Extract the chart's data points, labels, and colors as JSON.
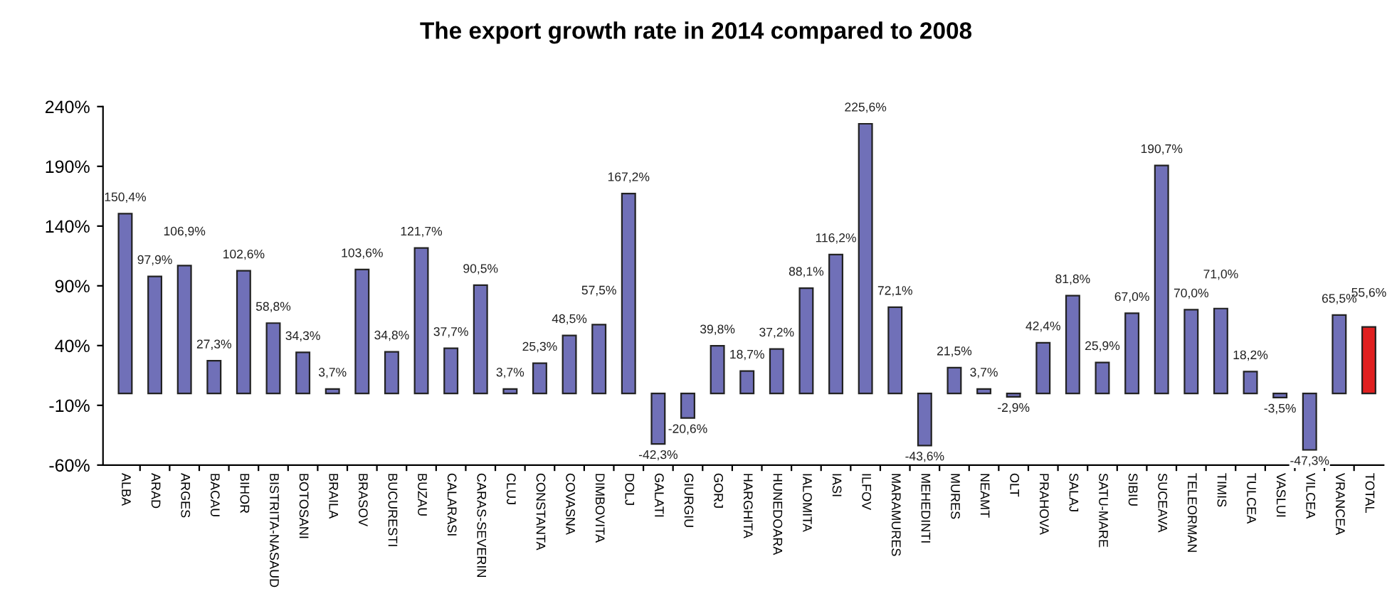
{
  "chart_data": {
    "type": "bar",
    "title": "The export growth rate in 2014 compared to 2008",
    "categories": [
      "ALBA",
      "ARAD",
      "ARGES",
      "BACAU",
      "BIHOR",
      "BISTRITA-NASAUD",
      "BOTOSANI",
      "BRAILA",
      "BRASOV",
      "BUCURESTI",
      "BUZAU",
      "CALARASI",
      "CARAS-SEVERIN",
      "CLUJ",
      "CONSTANTA",
      "COVASNA",
      "DIMBOVITA",
      "DOLJ",
      "GALATI",
      "GIURGIU",
      "GORJ",
      "HARGHITA",
      "HUNEDOARA",
      "IALOMITA",
      "IASI",
      "ILFOV",
      "MARAMURES",
      "MEHEDINTI",
      "MURES",
      "NEAMT",
      "OLT",
      "PRAHOVA",
      "SALAJ",
      "SATU-MARE",
      "SIBIU",
      "SUCEAVA",
      "TELEORMAN",
      "TIMIS",
      "TULCEA",
      "VASLUI",
      "VILCEA",
      "VRANCEA",
      "TOTAL"
    ],
    "values": [
      150.4,
      97.9,
      106.9,
      27.3,
      102.6,
      58.8,
      34.3,
      3.7,
      103.6,
      34.8,
      121.7,
      37.7,
      90.5,
      3.7,
      25.3,
      48.5,
      57.5,
      167.2,
      -42.3,
      -20.6,
      39.8,
      18.7,
      37.2,
      88.1,
      116.2,
      225.6,
      72.1,
      -43.6,
      21.5,
      3.7,
      -2.9,
      42.4,
      81.8,
      25.9,
      67.0,
      190.7,
      70.0,
      71.0,
      18.2,
      -3.5,
      -47.3,
      65.5,
      55.6
    ],
    "value_labels": [
      "150,4%",
      "97,9%",
      "106,9%",
      "27,3%",
      "102,6%",
      "58,8%",
      "34,3%",
      "3,7%",
      "103,6%",
      "34,8%",
      "121,7%",
      "37,7%",
      "90,5%",
      "3,7%",
      "25,3%",
      "48,5%",
      "57,5%",
      "167,2%",
      "-42,3%",
      "-20,6%",
      "39,8%",
      "18,7%",
      "37,2%",
      "88,1%",
      "116,2%",
      "225,6%",
      "72,1%",
      "-43,6%",
      "21,5%",
      "3,7%",
      "-2,9%",
      "42,4%",
      "81,8%",
      "25,9%",
      "67,0%",
      "190,7%",
      "70,0%",
      "71,0%",
      "18,2%",
      "-3,5%",
      "-47,3%",
      "65,5%",
      "55,6%"
    ],
    "colors": [
      "#7070b8",
      "#7070b8",
      "#7070b8",
      "#7070b8",
      "#7070b8",
      "#7070b8",
      "#7070b8",
      "#7070b8",
      "#7070b8",
      "#7070b8",
      "#7070b8",
      "#7070b8",
      "#7070b8",
      "#7070b8",
      "#7070b8",
      "#7070b8",
      "#7070b8",
      "#7070b8",
      "#7070b8",
      "#7070b8",
      "#7070b8",
      "#7070b8",
      "#7070b8",
      "#7070b8",
      "#7070b8",
      "#7070b8",
      "#7070b8",
      "#7070b8",
      "#7070b8",
      "#7070b8",
      "#7070b8",
      "#7070b8",
      "#7070b8",
      "#7070b8",
      "#7070b8",
      "#7070b8",
      "#7070b8",
      "#7070b8",
      "#7070b8",
      "#7070b8",
      "#7070b8",
      "#7070b8",
      "#e02020"
    ],
    "ylim": [
      -60,
      240
    ],
    "yticks": [
      {
        "value": -60,
        "label": "-60%"
      },
      {
        "value": -10,
        "label": "-10%"
      },
      {
        "value": 40,
        "label": "40%"
      },
      {
        "value": 90,
        "label": "90%"
      },
      {
        "value": 140,
        "label": "140%"
      },
      {
        "value": 190,
        "label": "190%"
      },
      {
        "value": 240,
        "label": "240%"
      }
    ],
    "grid": false,
    "legend": false
  }
}
